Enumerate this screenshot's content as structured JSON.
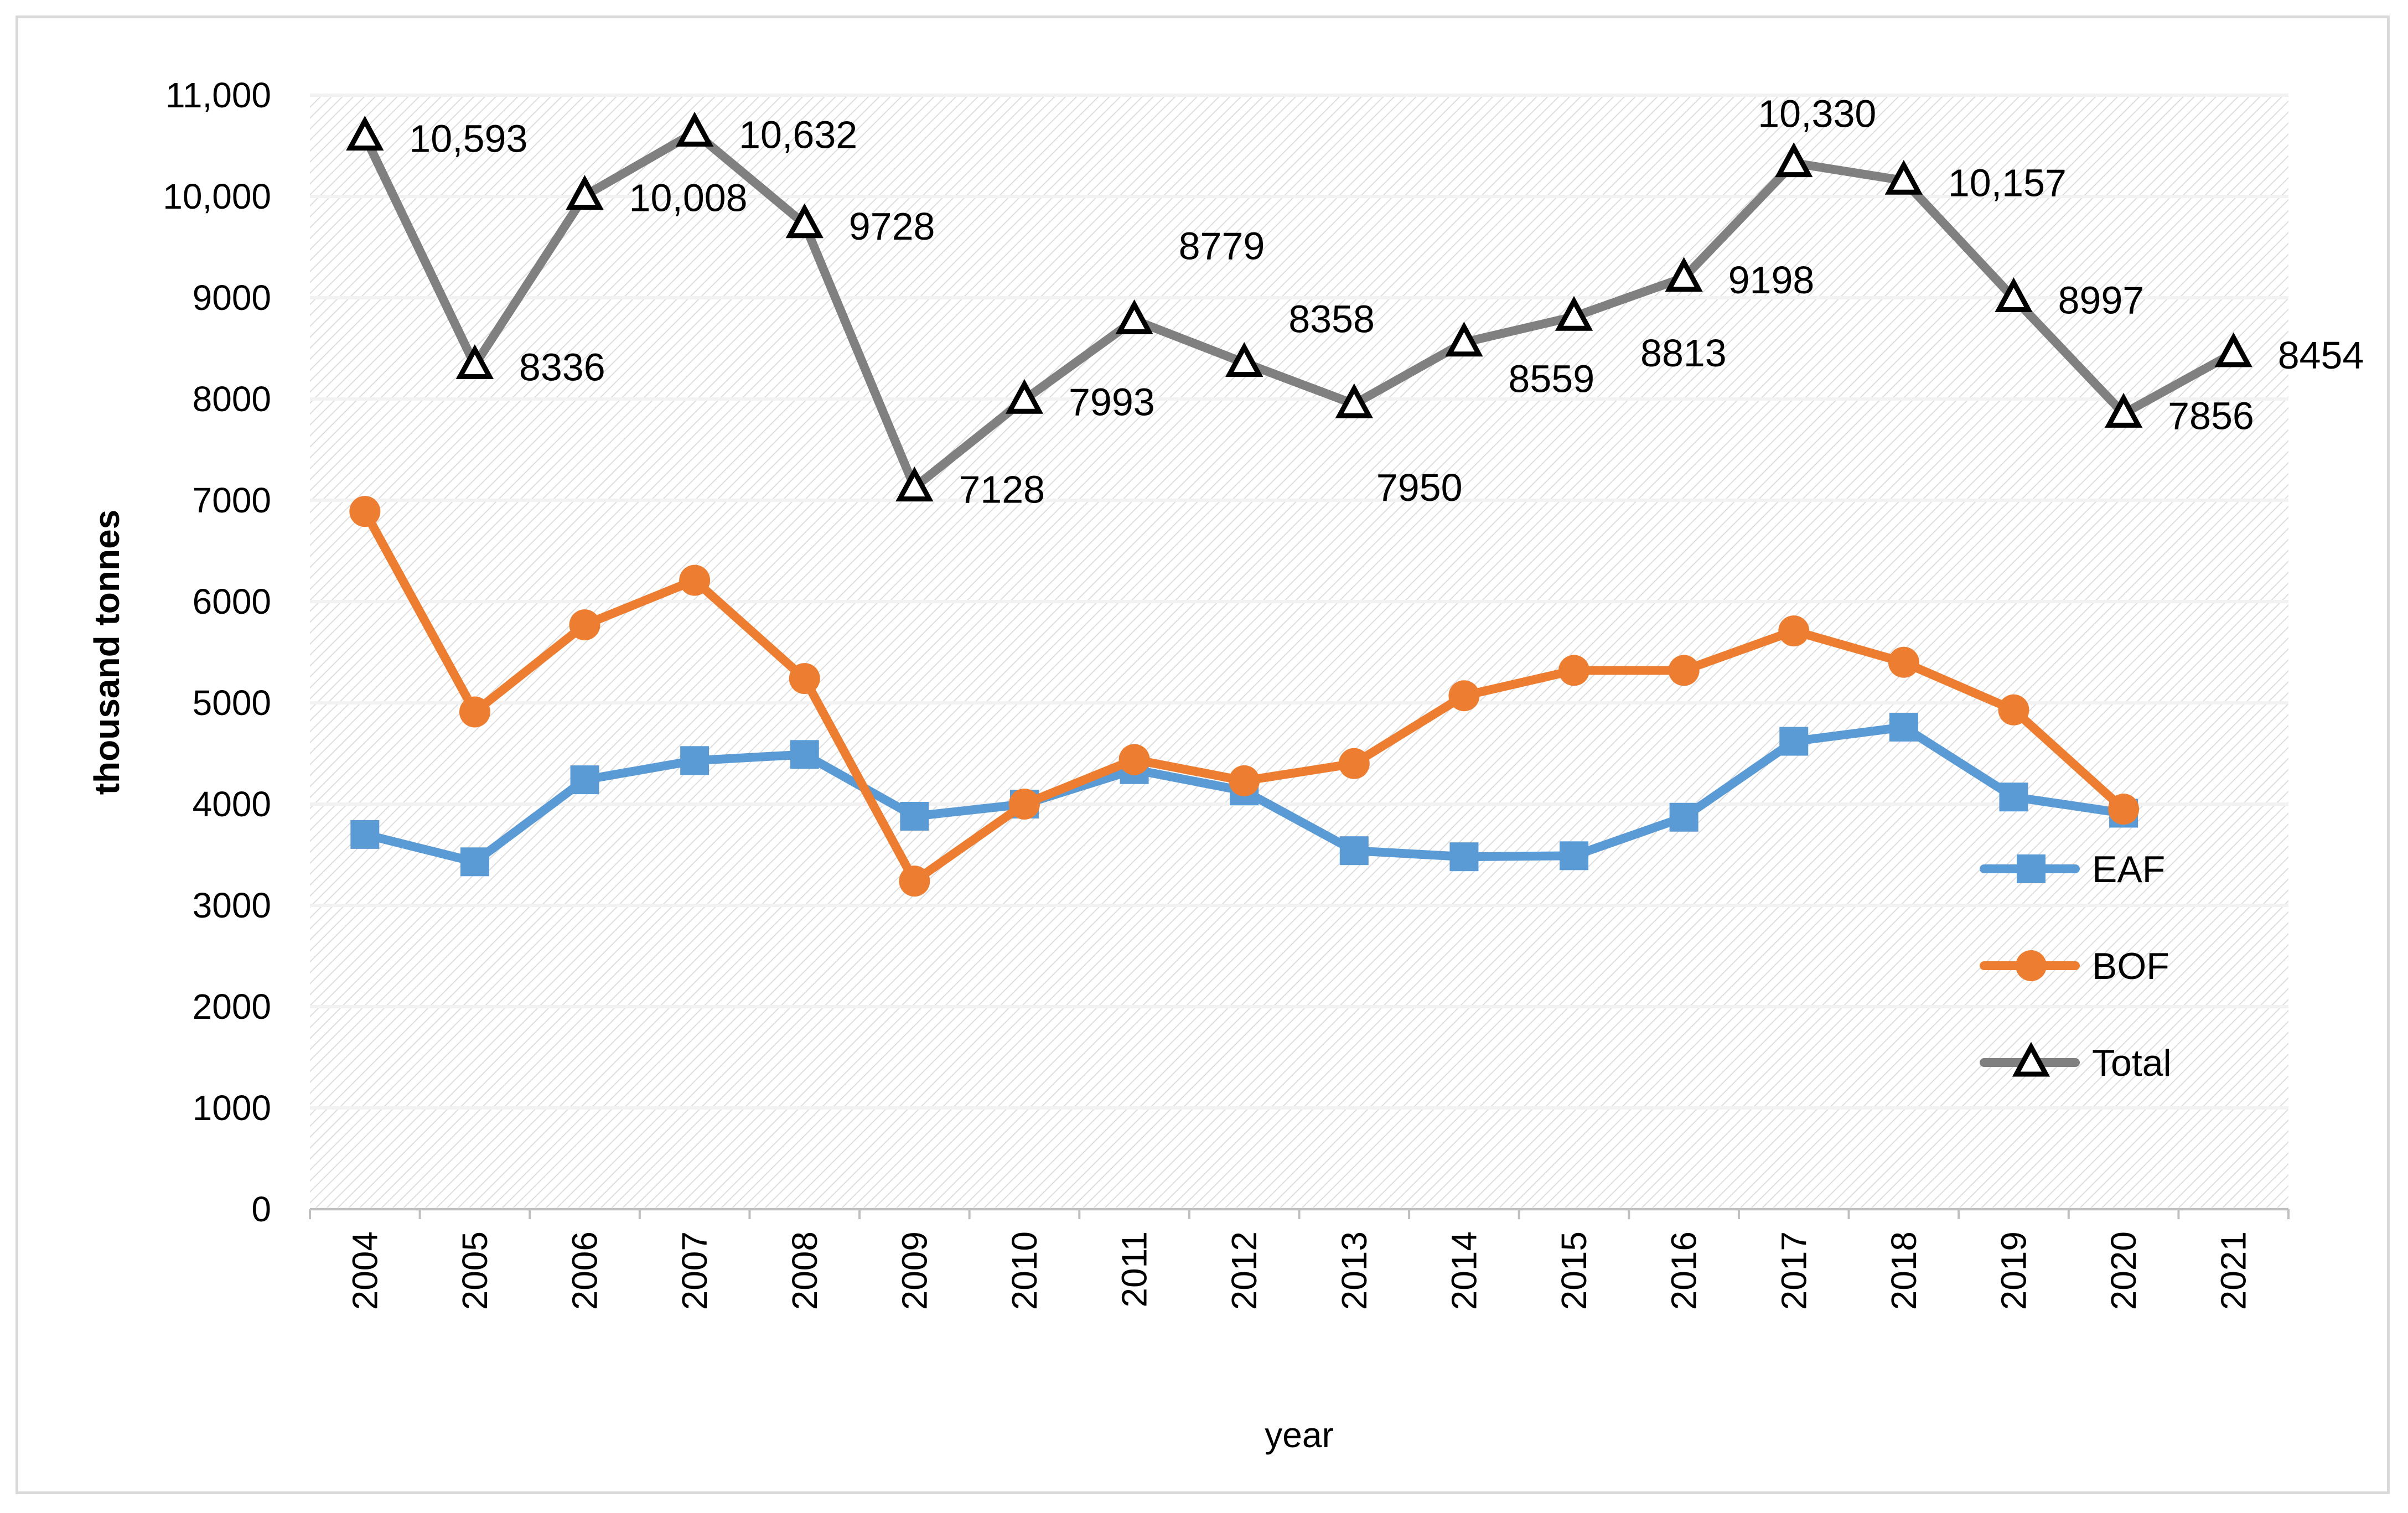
{
  "chart_data": {
    "type": "line",
    "title": "",
    "xlabel": "year",
    "ylabel": "thousand tonnes",
    "ylim": [
      0,
      11000
    ],
    "y_ticks": [
      0,
      1000,
      2000,
      3000,
      4000,
      5000,
      6000,
      7000,
      8000,
      9000,
      10000,
      11000
    ],
    "y_tick_labels": [
      "0",
      "1000",
      "2000",
      "3000",
      "4000",
      "5000",
      "6000",
      "7000",
      "8000",
      "9000",
      "10,000",
      "11,000"
    ],
    "categories": [
      "2004",
      "2005",
      "2006",
      "2007",
      "2008",
      "2009",
      "2010",
      "2011",
      "2012",
      "2013",
      "2014",
      "2015",
      "2016",
      "2017",
      "2018",
      "2019",
      "2020",
      "2021"
    ],
    "grid": true,
    "legend_position": "right",
    "series": [
      {
        "name": "EAF",
        "color": "#5b9bd5",
        "marker": "square",
        "values": [
          3700,
          3430,
          4240,
          4430,
          4490,
          3880,
          4000,
          4340,
          4130,
          3540,
          3480,
          3490,
          3870,
          4620,
          4760,
          4070,
          3910,
          null
        ]
      },
      {
        "name": "BOF",
        "color": "#ed7d31",
        "marker": "circle",
        "values": [
          6890,
          4910,
          5770,
          6210,
          5240,
          3240,
          4000,
          4440,
          4230,
          4400,
          5070,
          5320,
          5320,
          5710,
          5400,
          4930,
          3950,
          null
        ]
      },
      {
        "name": "Total",
        "color": "#808080",
        "marker": "triangle",
        "values": [
          10593,
          8336,
          10008,
          10632,
          9728,
          7128,
          7993,
          8779,
          8358,
          7950,
          8559,
          8813,
          9198,
          10330,
          10157,
          8997,
          7856,
          8454
        ],
        "data_labels": [
          "10,593",
          "8336",
          "10,008",
          "10,632",
          "9728",
          "7128",
          "7993",
          "8779",
          "8358",
          "7950",
          "8559",
          "8813",
          "9198",
          "10,330",
          "10,157",
          "8997",
          "7856",
          "8454"
        ]
      }
    ]
  }
}
